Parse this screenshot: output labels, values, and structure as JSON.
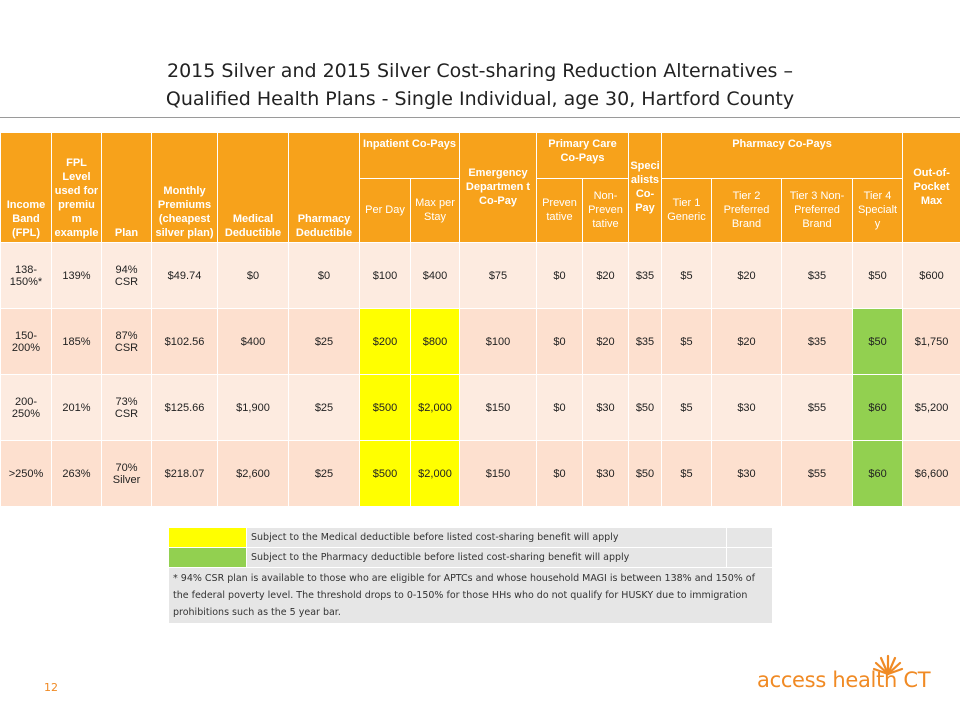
{
  "title": {
    "line1": "2015 Silver and 2015 Silver Cost-sharing Reduction Alternatives –",
    "line2": "Qualified Health Plans - Single Individual, age 30, Hartford County"
  },
  "headers": {
    "income_band": "Income Band (FPL)",
    "fpl_example": "FPL Level used for premiu m example",
    "plan": "Plan",
    "monthly_premiums": "Monthly Premiums (cheapest silver plan)",
    "medical_deductible": "Medical Deductible",
    "pharmacy_deductible": "Pharmacy Deductible",
    "inpatient_group": "Inpatient Co-Pays",
    "per_day": "Per Day",
    "max_per_stay": "Max per Stay",
    "emergency": "Emergency Departmen t Co-Pay",
    "primary_group": "Primary Care Co-Pays",
    "preventative": "Preven tative",
    "non_preventative": "Non-Preven tative",
    "specialists": "Speci alists Co-Pay",
    "pharmacy_group": "Pharmacy Co-Pays",
    "tier1": "Tier 1 Generic",
    "tier2": "Tier 2 Preferred Brand",
    "tier3": "Tier 3 Non-Preferred Brand",
    "tier4": "Tier 4 Specialt y",
    "oop_max": "Out-of-Pocket Max"
  },
  "rows": [
    {
      "band": "138-150%*",
      "fpl": "139%",
      "plan": "94% CSR",
      "premium": "$49.74",
      "med_ded": "$0",
      "pha_ded": "$0",
      "per_day": "$100",
      "max_stay": "$400",
      "er": "$75",
      "prev": "$0",
      "nonprev": "$20",
      "spec": "$35",
      "t1": "$5",
      "t2": "$20",
      "t3": "$35",
      "t4": "$50",
      "oop": "$600"
    },
    {
      "band": "150-200%",
      "fpl": "185%",
      "plan": "87% CSR",
      "premium": "$102.56",
      "med_ded": "$400",
      "pha_ded": "$25",
      "per_day": "$200",
      "max_stay": "$800",
      "er": "$100",
      "prev": "$0",
      "nonprev": "$20",
      "spec": "$35",
      "t1": "$5",
      "t2": "$20",
      "t3": "$35",
      "t4": "$50",
      "oop": "$1,750"
    },
    {
      "band": "200-250%",
      "fpl": "201%",
      "plan": "73% CSR",
      "premium": "$125.66",
      "med_ded": "$1,900",
      "pha_ded": "$25",
      "per_day": "$500",
      "max_stay": "$2,000",
      "er": "$150",
      "prev": "$0",
      "nonprev": "$30",
      "spec": "$50",
      "t1": "$5",
      "t2": "$30",
      "t3": "$55",
      "t4": "$60",
      "oop": "$5,200"
    },
    {
      "band": ">250%",
      "fpl": "263%",
      "plan": "70% Silver",
      "premium": "$218.07",
      "med_ded": "$2,600",
      "pha_ded": "$25",
      "per_day": "$500",
      "max_stay": "$2,000",
      "er": "$150",
      "prev": "$0",
      "nonprev": "$30",
      "spec": "$50",
      "t1": "$5",
      "t2": "$30",
      "t3": "$55",
      "t4": "$60",
      "oop": "$6,600"
    }
  ],
  "legend": {
    "medical": "Subject to the Medical deductible before listed cost-sharing benefit will apply",
    "pharmacy": "Subject to the Pharmacy deductible before listed cost-sharing benefit will apply",
    "footnote": "* 94% CSR plan is available to those who are eligible for APTCs and whose household MAGI is between 138% and 150% of the federal poverty level. The threshold drops to 0-150% for those HHs who do not qualify for HUSKY due to immigration prohibitions such as the 5 year bar."
  },
  "page_number": "12",
  "logo": {
    "text": "access health CT"
  },
  "colors": {
    "header_orange": "#f7a21b",
    "row_light": "#fdebe0",
    "row_dark": "#fde0cf",
    "medical_highlight": "#ffff00",
    "pharmacy_highlight": "#92d050",
    "brand_orange": "#f08a24"
  }
}
